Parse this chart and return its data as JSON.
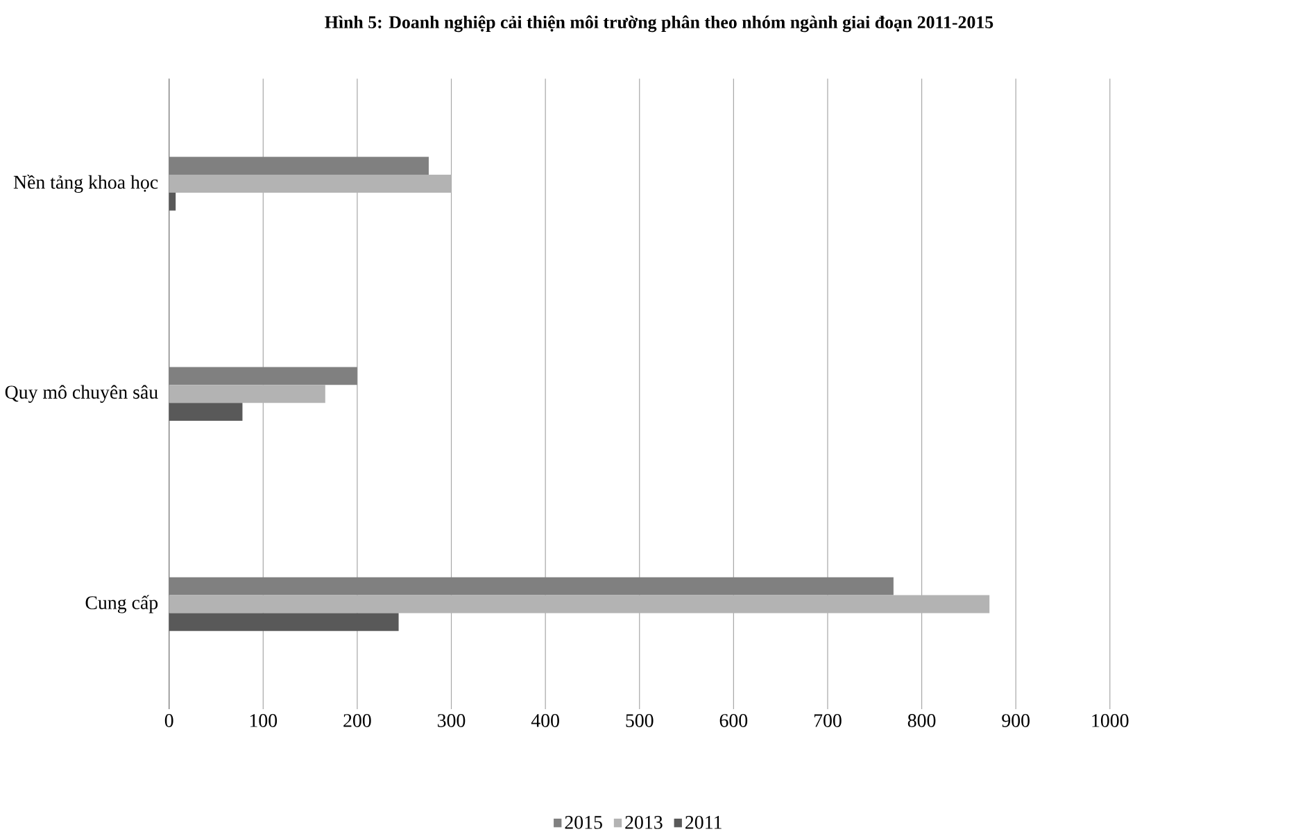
{
  "chart_data": {
    "type": "bar",
    "orientation": "horizontal",
    "title": "Hình 5: Doanh nghiệp cải thiện môi trường phân theo nhóm ngành giai đoạn 2011-2015",
    "categories": [
      "Nền tảng khoa học",
      "Quy mô chuyên sâu",
      "Cung cấp"
    ],
    "series": [
      {
        "name": "2015",
        "color": "#808080",
        "values": [
          276,
          200,
          770
        ]
      },
      {
        "name": "2013",
        "color": "#b3b3b3",
        "values": [
          300,
          166,
          872
        ]
      },
      {
        "name": "2011",
        "color": "#595959",
        "values": [
          7,
          78,
          244
        ]
      }
    ],
    "xlim": [
      0,
      1000
    ],
    "xticks": [
      0,
      100,
      200,
      300,
      400,
      500,
      600,
      700,
      800,
      900,
      1000
    ],
    "grid": "x",
    "legend": "bottom"
  }
}
